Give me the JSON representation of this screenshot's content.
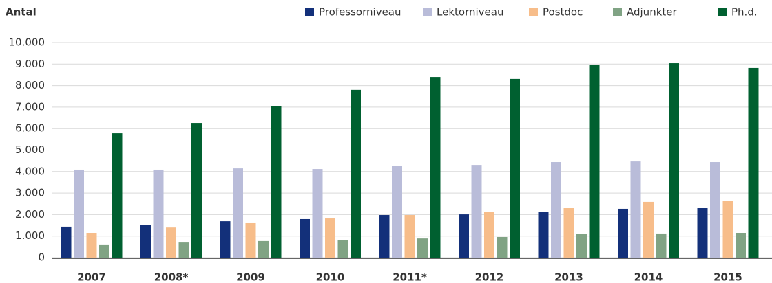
{
  "chart_data": {
    "type": "bar",
    "y_label": "Antal",
    "categories": [
      "2007",
      "2008*",
      "2009",
      "2010",
      "2011*",
      "2012",
      "2013",
      "2014",
      "2015"
    ],
    "series": [
      {
        "name": "Professorniveau",
        "color": "#13307a",
        "values": [
          1440,
          1530,
          1690,
          1790,
          1980,
          2010,
          2140,
          2270,
          2300
        ]
      },
      {
        "name": "Lektorniveau",
        "color": "#b9bcd9",
        "values": [
          4090,
          4090,
          4150,
          4120,
          4280,
          4310,
          4440,
          4470,
          4440
        ]
      },
      {
        "name": "Postdoc",
        "color": "#f7bd8a",
        "values": [
          1150,
          1400,
          1630,
          1820,
          1980,
          2140,
          2300,
          2590,
          2650
        ]
      },
      {
        "name": "Adjunkter",
        "color": "#80a384",
        "values": [
          610,
          700,
          770,
          830,
          890,
          960,
          1090,
          1120,
          1150
        ]
      },
      {
        "name": "Ph.d.",
        "color": "#006030",
        "values": [
          5780,
          6260,
          7060,
          7800,
          8400,
          8310,
          8950,
          9040,
          8820
        ]
      }
    ],
    "ylim": [
      0,
      10000
    ],
    "yticks": [
      0,
      {
        "value": 1000,
        "label": "1.000"
      },
      {
        "value": 2000,
        "label": "2.000"
      },
      {
        "value": 3000,
        "label": "3.000"
      },
      {
        "value": 4000,
        "label": "4.000"
      },
      {
        "value": 5000,
        "label": "5.000"
      },
      {
        "value": 6000,
        "label": "6.000"
      },
      {
        "value": 7000,
        "label": "7.000"
      },
      {
        "value": 8000,
        "label": "8.000"
      },
      {
        "value": 9000,
        "label": "9.000"
      },
      {
        "value": 10000,
        "label": "10.000"
      }
    ],
    "grid": true
  }
}
